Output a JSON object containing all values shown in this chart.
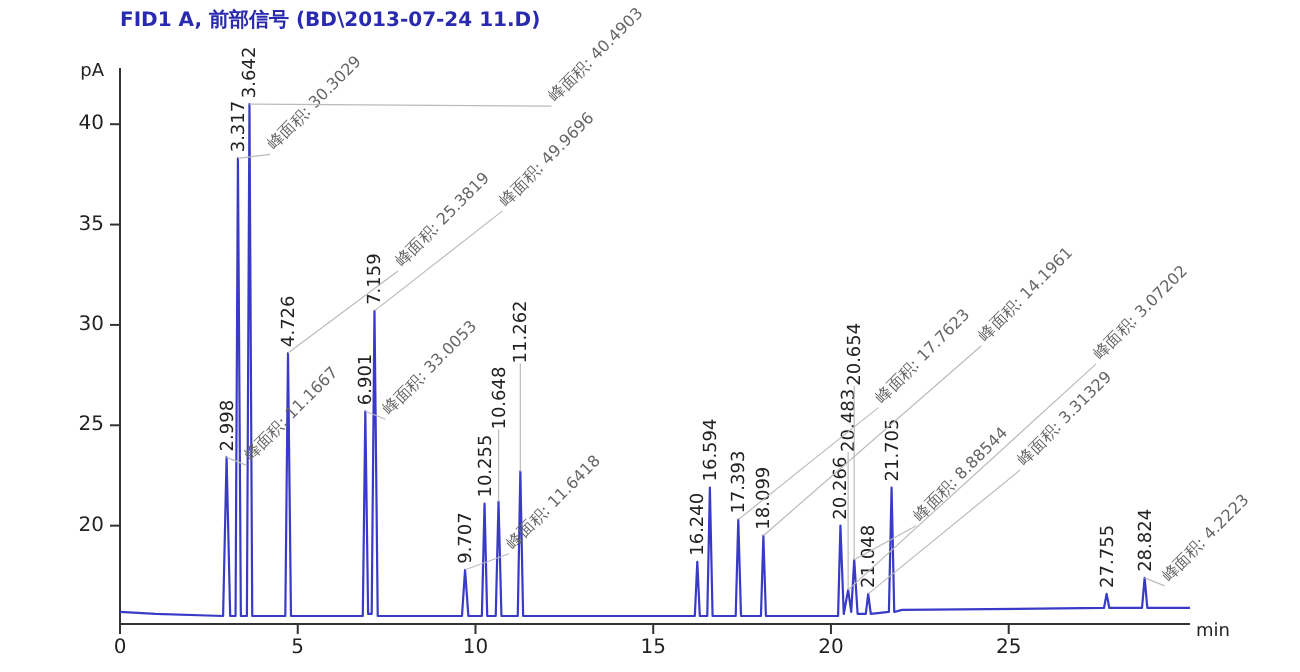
{
  "chart_data": {
    "type": "line",
    "title": "FID1 A, 前部信号 (BD\\2013-07-24 11.D)",
    "xlabel": "min",
    "ylabel": "pA",
    "x": [
      0,
      1,
      2.9,
      2.998,
      3.1,
      3.25,
      3.317,
      3.4,
      3.57,
      3.642,
      3.72,
      4.65,
      4.726,
      4.81,
      6.83,
      6.901,
      6.98,
      7.08,
      7.159,
      7.25,
      9.62,
      9.707,
      9.8,
      10.18,
      10.255,
      10.33,
      10.57,
      10.648,
      10.73,
      11.19,
      11.262,
      11.34,
      16.17,
      16.24,
      16.31,
      16.52,
      16.594,
      16.67,
      17.32,
      17.393,
      17.47,
      18.03,
      18.099,
      18.17,
      20.2,
      20.266,
      20.36,
      20.483,
      20.57,
      20.654,
      20.75,
      20.98,
      21.048,
      21.12,
      21.63,
      21.705,
      21.78,
      22,
      27.68,
      27.755,
      27.83,
      28.75,
      28.824,
      28.9,
      30.1
    ],
    "series": [
      {
        "color": "#3a3ac8",
        "values": [
          15.7,
          15.6,
          15.5,
          23.4,
          15.5,
          15.5,
          38.3,
          15.5,
          15.5,
          41.0,
          15.5,
          15.5,
          28.6,
          15.5,
          15.5,
          25.7,
          15.6,
          15.6,
          30.7,
          15.5,
          15.5,
          17.8,
          15.5,
          15.5,
          21.1,
          15.5,
          15.5,
          21.2,
          15.5,
          15.5,
          22.7,
          15.5,
          15.5,
          18.2,
          15.5,
          15.5,
          21.9,
          15.5,
          15.5,
          20.3,
          15.5,
          15.5,
          19.5,
          15.5,
          15.5,
          20.0,
          15.6,
          16.8,
          15.7,
          18.3,
          15.6,
          15.6,
          16.6,
          15.6,
          15.7,
          21.9,
          15.7,
          15.8,
          15.9,
          16.6,
          15.9,
          15.9,
          17.4,
          15.9,
          15.9
        ]
      }
    ],
    "xlim": [
      0,
      30.1
    ],
    "ylim": [
      15.1,
      42.8
    ],
    "xticks": [
      0,
      5,
      10,
      15,
      20,
      25
    ],
    "yticks": [
      20,
      25,
      30,
      35,
      40
    ],
    "annotations": [
      {
        "text": "2.998",
        "x": 2.998,
        "y": 23.4
      },
      {
        "text": "3.317",
        "x": 3.317,
        "y": 38.3
      },
      {
        "text": "3.642",
        "x": 3.642,
        "y": 41.0
      },
      {
        "text": "4.726",
        "x": 4.726,
        "y": 28.6
      },
      {
        "text": "6.901",
        "x": 6.901,
        "y": 25.7
      },
      {
        "text": "7.159",
        "x": 7.159,
        "y": 30.7
      },
      {
        "text": "9.707",
        "x": 9.707,
        "y": 17.8
      },
      {
        "text": "10.255",
        "x": 10.255,
        "y": 21.1
      },
      {
        "text": "10.648",
        "x": 10.648,
        "y": 21.2
      },
      {
        "text": "11.262",
        "x": 11.262,
        "y": 22.7
      },
      {
        "text": "16.240",
        "x": 16.24,
        "y": 18.2
      },
      {
        "text": "16.594",
        "x": 16.594,
        "y": 21.9
      },
      {
        "text": "17.393",
        "x": 17.393,
        "y": 20.3
      },
      {
        "text": "18.099",
        "x": 18.099,
        "y": 19.5
      },
      {
        "text": "20.266",
        "x": 20.266,
        "y": 20.0
      },
      {
        "text": "20.483",
        "x": 20.483,
        "y": 16.8
      },
      {
        "text": "20.654",
        "x": 20.654,
        "y": 18.3
      },
      {
        "text": "21.048",
        "x": 21.048,
        "y": 16.6
      },
      {
        "text": "21.705",
        "x": 21.705,
        "y": 21.9
      },
      {
        "text": "27.755",
        "x": 27.755,
        "y": 16.6
      },
      {
        "text": "28.824",
        "x": 28.824,
        "y": 17.4
      },
      {
        "text": "峰面积: 11.1667",
        "x": 2.998,
        "y": 23.4
      },
      {
        "text": "峰面积: 30.3029",
        "x": 3.317,
        "y": 38.3
      },
      {
        "text": "峰面积: 40.4903",
        "x": 3.642,
        "y": 41.0
      },
      {
        "text": "峰面积: 25.3819",
        "x": 4.726,
        "y": 28.6
      },
      {
        "text": "峰面积: 33.0053",
        "x": 6.901,
        "y": 25.7
      },
      {
        "text": "峰面积: 49.9696",
        "x": 7.159,
        "y": 30.7
      },
      {
        "text": "峰面积: 11.6418",
        "x": 9.707,
        "y": 17.8
      },
      {
        "text": "峰面积: 17.7623",
        "x": 17.393,
        "y": 20.3
      },
      {
        "text": "峰面积: 14.1961",
        "x": 18.099,
        "y": 19.5
      },
      {
        "text": "峰面积: 8.88544",
        "x": 20.654,
        "y": 18.3
      },
      {
        "text": "峰面积: 3.31329",
        "x": 21.048,
        "y": 16.6
      },
      {
        "text": "峰面积: 3.07202",
        "x": 20.483,
        "y": 16.8
      },
      {
        "text": "峰面积: 4.2223",
        "x": 28.824,
        "y": 17.4
      }
    ]
  }
}
